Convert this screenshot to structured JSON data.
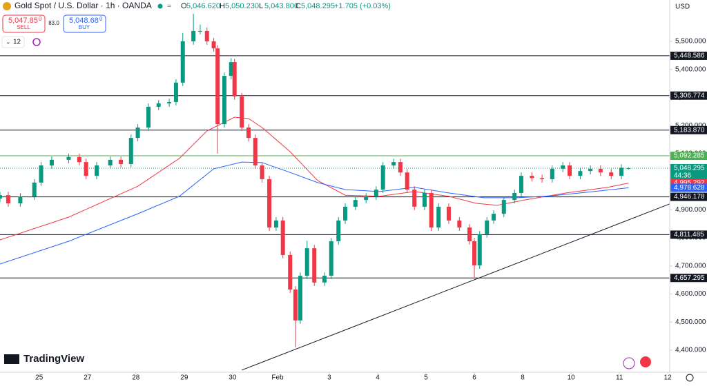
{
  "header": {
    "symbol": "Gold Spot / U.S. Dollar · 1h · OANDA",
    "ohlc": [
      {
        "key": "O",
        "value": "5,046.620"
      },
      {
        "key": "H",
        "value": "5,050.230"
      },
      {
        "key": "L",
        "value": "5,043.800"
      },
      {
        "key": "C",
        "value": "5,048.295"
      }
    ],
    "change": "+1.705 (+0.03%)",
    "sell_price": "5,047.85",
    "sell_sup": "0",
    "sell_label": "SELL",
    "spread": "83.0",
    "buy_price": "5,048.68",
    "buy_sup": "0",
    "buy_label": "BUY",
    "indicator_count": "12",
    "currency": "USD",
    "brand": "TradingView"
  },
  "chart_data": {
    "type": "candlestick",
    "x": [
      -0.81,
      -0.64,
      -0.39,
      -0.1,
      0.04,
      0.26,
      0.61,
      0.83,
      0.97,
      1.19,
      1.47,
      1.69,
      1.9,
      2.04,
      2.26,
      2.47,
      2.69,
      2.83,
      2.97,
      3.19,
      3.33,
      3.47,
      3.61,
      3.69,
      3.83,
      3.97,
      4.04,
      4.19,
      4.33,
      4.47,
      4.61,
      4.76,
      4.9,
      5.04,
      5.19,
      5.3,
      5.4,
      5.54,
      5.69,
      5.9,
      6.04,
      6.19,
      6.33,
      6.54,
      6.76,
      6.97,
      7.11,
      7.33,
      7.47,
      7.61,
      7.76,
      7.97,
      8.11,
      8.26,
      8.47,
      8.69,
      8.9,
      9.0,
      9.11,
      9.26,
      9.4,
      9.61,
      9.83,
      9.97,
      10.19,
      10.4,
      10.61,
      10.83,
      10.97,
      11.19,
      11.4,
      11.61,
      11.83,
      12.04,
      12.19
    ],
    "open": [
      4940,
      4952,
      4923,
      4947,
      4997,
      5058,
      5078,
      5088,
      5070,
      5021,
      5058,
      5078,
      5063,
      5156,
      5193,
      5267,
      5279,
      5284,
      5353,
      5500,
      5537,
      5537,
      5500,
      5475,
      5205,
      5377,
      5426,
      5304,
      5193,
      5156,
      5058,
      5009,
      4837,
      4862,
      4739,
      4616,
      4506,
      4665,
      4763,
      4641,
      4665,
      4788,
      4862,
      4911,
      4935,
      4947,
      4972,
      5058,
      5070,
      5033,
      4972,
      4911,
      4960,
      4837,
      4911,
      4862,
      4837,
      4788,
      4702,
      4813,
      4862,
      4886,
      4935,
      4960,
      5021,
      5013,
      5009,
      5046,
      5058,
      5021,
      5038,
      5046,
      5033,
      5021,
      5046.62
    ],
    "high": [
      4964,
      4964,
      4959,
      5009,
      5070,
      5090,
      5100,
      5100,
      5082,
      5070,
      5090,
      5090,
      5168,
      5205,
      5279,
      5291,
      5296,
      5365,
      5530,
      5598,
      5560,
      5550,
      5512,
      5487,
      5389,
      5440,
      5438,
      5316,
      5205,
      5168,
      5070,
      5021,
      4874,
      4874,
      4751,
      4628,
      4677,
      4790,
      4775,
      4677,
      4800,
      4874,
      4923,
      4947,
      4959,
      4984,
      5070,
      5082,
      5082,
      5045,
      4984,
      4972,
      4972,
      4923,
      4923,
      4874,
      4849,
      4800,
      4825,
      4874,
      4898,
      4947,
      4972,
      5033,
      5033,
      5025,
      5058,
      5070,
      5070,
      5050,
      5058,
      5058,
      5045,
      5062,
      5050.23
    ],
    "low": [
      4928,
      4911,
      4911,
      4935,
      4985,
      5046,
      5066,
      5058,
      5009,
      5009,
      5046,
      5051,
      5051,
      5144,
      5181,
      5255,
      5267,
      5272,
      5341,
      5488,
      5525,
      5488,
      5463,
      5100,
      5193,
      5365,
      5292,
      5181,
      5144,
      5046,
      4997,
      4825,
      4825,
      4727,
      4604,
      4410,
      4494,
      4653,
      4629,
      4629,
      4653,
      4776,
      4850,
      4899,
      4923,
      4935,
      4960,
      5046,
      5021,
      4960,
      4899,
      4899,
      4825,
      4825,
      4850,
      4825,
      4776,
      4655,
      4690,
      4801,
      4850,
      4874,
      4923,
      4948,
      5001,
      4997,
      4997,
      5034,
      5009,
      5009,
      5026,
      5021,
      5009,
      5009,
      5043.8
    ],
    "close": [
      4952,
      4923,
      4947,
      4997,
      5058,
      5078,
      5088,
      5070,
      5021,
      5058,
      5078,
      5063,
      5156,
      5193,
      5267,
      5279,
      5284,
      5353,
      5500,
      5537,
      5537,
      5500,
      5475,
      5205,
      5377,
      5426,
      5304,
      5193,
      5156,
      5058,
      5009,
      4837,
      4862,
      4739,
      4616,
      4506,
      4665,
      4763,
      4641,
      4665,
      4788,
      4862,
      4911,
      4935,
      4947,
      4972,
      5058,
      5070,
      5033,
      4972,
      4911,
      4960,
      4837,
      4911,
      4862,
      4837,
      4788,
      4702,
      4813,
      4862,
      4886,
      4935,
      4960,
      5021,
      5013,
      5009,
      5046,
      5058,
      5021,
      5038,
      5046,
      5033,
      5021,
      5050,
      5048.295
    ],
    "up_color": "#089981",
    "down_color": "#f23645",
    "xlim": [
      -0.81,
      13.04
    ],
    "ylim": [
      4321.5,
      5647.3
    ],
    "xticks": [
      {
        "value": 0,
        "label": "25"
      },
      {
        "value": 1,
        "label": "27"
      },
      {
        "value": 2,
        "label": "28"
      },
      {
        "value": 3,
        "label": "29"
      },
      {
        "value": 4,
        "label": "30"
      },
      {
        "value": 4.93,
        "label": "Feb"
      },
      {
        "value": 6,
        "label": "3"
      },
      {
        "value": 7,
        "label": "4"
      },
      {
        "value": 8,
        "label": "5"
      },
      {
        "value": 9,
        "label": "6"
      },
      {
        "value": 10,
        "label": "8"
      },
      {
        "value": 11,
        "label": "10"
      },
      {
        "value": 12,
        "label": "11"
      },
      {
        "value": 13,
        "label": "12"
      }
    ],
    "yticks": [
      {
        "value": 4400,
        "label": "4,400.000"
      },
      {
        "value": 4500,
        "label": "4,500.000"
      },
      {
        "value": 4600,
        "label": "4,600.000"
      },
      {
        "value": 4700,
        "label": "4,700.000"
      },
      {
        "value": 4800,
        "label": "4,800.000"
      },
      {
        "value": 4900,
        "label": "4,900.000"
      },
      {
        "value": 5000,
        "label": "5,000.000"
      },
      {
        "value": 5100,
        "label": "5,100.000"
      },
      {
        "value": 5200,
        "label": "5,200.000"
      },
      {
        "value": 5300,
        "label": "5,300.000"
      },
      {
        "value": 5400,
        "label": "5,400.000"
      },
      {
        "value": 5500,
        "label": "5,500.000"
      }
    ],
    "grid": false,
    "lines": [
      {
        "color": "#f23645",
        "x": [
          -0.81,
          0.61,
          2.04,
          2.9,
          3.47,
          4.04,
          4.33,
          4.61,
          5.19,
          5.76,
          6.33,
          7.04,
          7.76,
          8.47,
          9.04,
          9.47,
          10.04,
          10.9,
          11.76,
          12.19
        ],
        "values": [
          4793,
          4874,
          4984,
          5083,
          5181,
          5230,
          5225,
          5193,
          5107,
          5004,
          4952,
          4948,
          4965,
          4948,
          4923,
          4916,
          4935,
          4960,
          4980,
          4995.292
        ],
        "last_label": "4,995.292"
      },
      {
        "color": "#2962ff",
        "x": [
          -0.81,
          0.61,
          2.04,
          2.9,
          3.61,
          4.19,
          4.61,
          5.19,
          5.76,
          6.33,
          7.04,
          7.76,
          8.47,
          9.19,
          9.9,
          10.61,
          11.47,
          12.19
        ],
        "values": [
          4707,
          4788,
          4886,
          4948,
          5046,
          5070,
          5068,
          5033,
          4997,
          4972,
          4965,
          4980,
          4960,
          4943,
          4943,
          4950,
          4965,
          4978.628
        ],
        "last_label": "4,978.628"
      }
    ],
    "levels": [
      {
        "value": 5448.586,
        "label": "5,448.586",
        "color": "#131722"
      },
      {
        "value": 5306.774,
        "label": "5,306.774",
        "color": "#131722"
      },
      {
        "value": 5183.87,
        "label": "5,183.870",
        "color": "#131722"
      },
      {
        "value": 5092.285,
        "label": "5,092.285",
        "color": "#4caf50"
      },
      {
        "value": 4946.178,
        "label": "4,946.178",
        "color": "#131722"
      },
      {
        "value": 4811.485,
        "label": "4,811.485",
        "color": "#131722"
      },
      {
        "value": 4657.295,
        "label": "4,657.295",
        "color": "#131722"
      }
    ],
    "trendline": {
      "x": [
        4.19,
        13.04
      ],
      "values": [
        4329,
        4921
      ],
      "color": "#131722"
    },
    "last_price": {
      "value": 5048.295,
      "label": "5,048.295",
      "countdown": "44:36",
      "color": "#089981"
    }
  }
}
